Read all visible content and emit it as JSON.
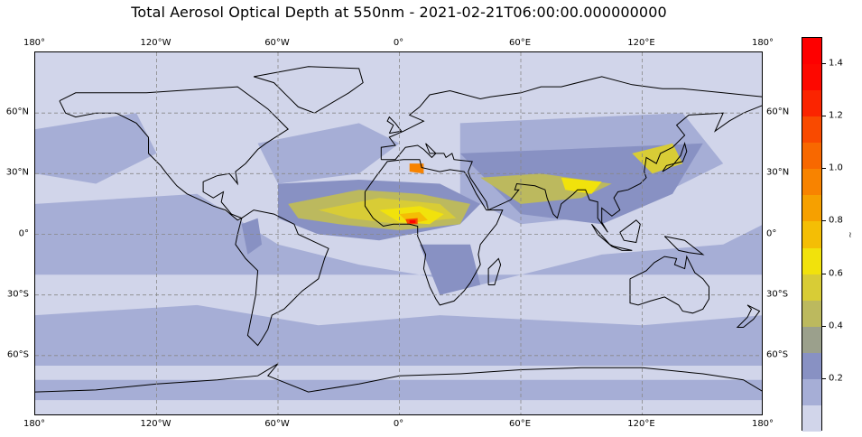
{
  "title": "Total Aerosol Optical Depth at 550nm - 2021-02-21T06:00:00.000000000",
  "map": {
    "projection": "PlateCarree",
    "extent_lon": [
      -180,
      180
    ],
    "extent_lat": [
      -90,
      90
    ],
    "gridlines": "dashed",
    "coastline_color": "#000000",
    "lon_ticks": [
      {
        "lon": -180,
        "label": "180°"
      },
      {
        "lon": -120,
        "label": "120°W"
      },
      {
        "lon": -60,
        "label": "60°W"
      },
      {
        "lon": 0,
        "label": "0°"
      },
      {
        "lon": 60,
        "label": "60°E"
      },
      {
        "lon": 120,
        "label": "120°E"
      },
      {
        "lon": 180,
        "label": "180°"
      }
    ],
    "lat_ticks": [
      {
        "lat": 60,
        "label": "60°N"
      },
      {
        "lat": 30,
        "label": "30°N"
      },
      {
        "lat": 0,
        "label": "0°"
      },
      {
        "lat": -30,
        "label": "30°S"
      },
      {
        "lat": -60,
        "label": "60°S"
      }
    ]
  },
  "colorbar": {
    "label": "~",
    "range": [
      0,
      1.5
    ],
    "levels": [
      0,
      0.1,
      0.2,
      0.3,
      0.4,
      0.5,
      0.6,
      0.7,
      0.8,
      0.9,
      1.0,
      1.1,
      1.2,
      1.3,
      1.4,
      1.5
    ],
    "colors": [
      "#d1d5ea",
      "#a6aed6",
      "#8891c3",
      "#9ba08c",
      "#bcb95e",
      "#d8cc36",
      "#f1e20c",
      "#f4be05",
      "#f6a000",
      "#f88300",
      "#f86800",
      "#f94a00",
      "#fb2400",
      "#fd0800",
      "#fe0000"
    ],
    "ticks": [
      {
        "value": 0.2,
        "label": "0.2"
      },
      {
        "value": 0.4,
        "label": "0.4"
      },
      {
        "value": 0.6,
        "label": "0.6"
      },
      {
        "value": 0.8,
        "label": "0.8"
      },
      {
        "value": 1.0,
        "label": "1.0"
      },
      {
        "value": 1.2,
        "label": "1.2"
      },
      {
        "value": 1.4,
        "label": "1.4"
      }
    ]
  }
}
